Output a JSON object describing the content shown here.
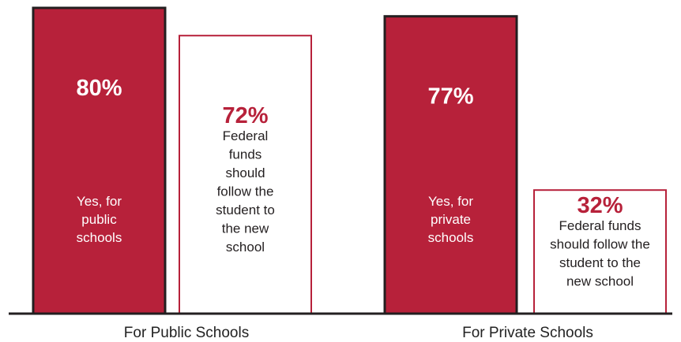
{
  "chart_data": {
    "type": "bar",
    "categories": [
      "For Public Schools",
      "For Private Schools"
    ],
    "series": [
      {
        "values": [
          80,
          77
        ],
        "descriptions": [
          [
            "Yes, for",
            "public",
            "schools"
          ],
          [
            "Yes, for",
            "private",
            "schools"
          ]
        ],
        "style": "filled"
      },
      {
        "values": [
          72,
          32
        ],
        "descriptions": [
          [
            "Federal",
            "funds",
            "should",
            "follow the",
            "student to",
            "the new",
            "school"
          ],
          [
            "Federal funds",
            "should follow the",
            "student to the",
            "new school"
          ]
        ],
        "style": "outlined"
      }
    ],
    "value_suffix": "%",
    "ylim": [
      0,
      100
    ],
    "colors": {
      "fill": "#b7213a",
      "stroke_dark": "#231f20",
      "outline": "#b7213a",
      "text_light": "#ffffff",
      "text_accent": "#b7213a",
      "text_dark": "#231f20"
    }
  }
}
